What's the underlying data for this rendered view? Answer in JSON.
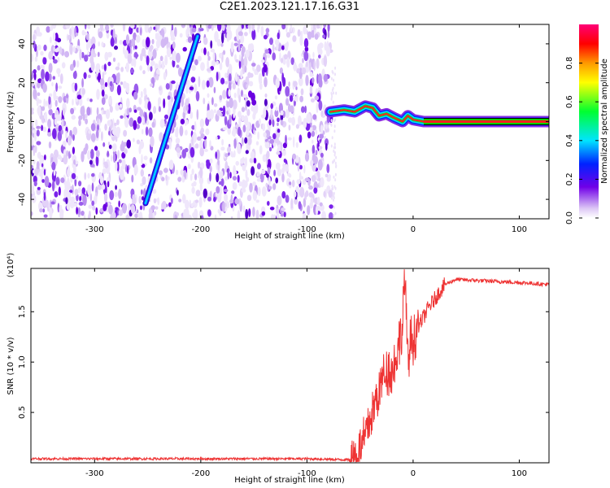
{
  "title": "C2E1.2023.121.17.16.G31",
  "colors": {
    "snr_line": "#ee3333",
    "axis": "#000000",
    "background": "#ffffff"
  },
  "chart_data": [
    {
      "type": "heatmap",
      "name": "spectrogram",
      "xlabel": "Height of straight line (km)",
      "ylabel": "Frequency (Hz)",
      "xlim": [
        -360,
        128
      ],
      "ylim": [
        -50,
        50
      ],
      "xticks": [
        -300,
        -200,
        -100,
        0,
        100
      ],
      "xtick_labels": [
        "-300",
        "-200",
        "-100",
        "0",
        "100"
      ],
      "yticks": [
        -40,
        -20,
        0,
        20,
        40
      ],
      "ytick_labels": [
        "-40",
        "-20",
        "0",
        "20",
        "40"
      ],
      "noise_region_x": [
        -360,
        -77
      ],
      "tracked_feature": {
        "description": "Diagonal line in the noise region",
        "start": {
          "x": -252,
          "y": -42
        },
        "end": {
          "x": -203,
          "y": 44
        }
      },
      "signal_band": [
        {
          "x": -78,
          "y": 5
        },
        {
          "x": -65,
          "y": 6
        },
        {
          "x": -55,
          "y": 5
        },
        {
          "x": -45,
          "y": 8
        },
        {
          "x": -38,
          "y": 7
        },
        {
          "x": -32,
          "y": 3
        },
        {
          "x": -25,
          "y": 4
        },
        {
          "x": -18,
          "y": 2
        },
        {
          "x": -10,
          "y": 0
        },
        {
          "x": -5,
          "y": 3
        },
        {
          "x": 0,
          "y": 1
        },
        {
          "x": 10,
          "y": 0
        },
        {
          "x": 128,
          "y": 0
        }
      ],
      "colorbar": {
        "label": "Normalized spectral amplitude",
        "range": [
          0,
          1
        ],
        "ticks": [
          0.0,
          0.2,
          0.4,
          0.6,
          0.8
        ],
        "tick_labels": [
          "0.0",
          "0.2",
          "0.4",
          "0.6",
          "0.8"
        ]
      }
    },
    {
      "type": "line",
      "name": "snr",
      "xlabel": "Height of straight line (km)",
      "ylabel": "SNR (10 * v/v)",
      "y_multiplier": "(x10⁴)",
      "xlim": [
        -360,
        128
      ],
      "ylim": [
        0,
        1.93
      ],
      "xticks": [
        -300,
        -200,
        -100,
        0,
        100
      ],
      "xtick_labels": [
        "-300",
        "-200",
        "-100",
        "0",
        "100"
      ],
      "yticks": [
        0.5,
        1.0,
        1.5
      ],
      "ytick_labels": [
        "0.5",
        "1.0",
        "1.5"
      ],
      "series": [
        {
          "name": "SNR",
          "x": [
            -360,
            -250,
            -150,
            -100,
            -60,
            -52,
            -45,
            -40,
            -35,
            -30,
            -25,
            -20,
            -15,
            -10,
            -8,
            -5,
            -2,
            0,
            5,
            10,
            15,
            20,
            25,
            30,
            40,
            60,
            80,
            100,
            128
          ],
          "y": [
            0.04,
            0.04,
            0.04,
            0.04,
            0.03,
            0.08,
            0.25,
            0.45,
            0.6,
            0.8,
            0.95,
            0.9,
            1.1,
            1.35,
            1.9,
            1.0,
            1.2,
            1.25,
            1.35,
            1.45,
            1.55,
            1.62,
            1.7,
            1.77,
            1.82,
            1.81,
            1.8,
            1.79,
            1.77
          ]
        }
      ]
    }
  ]
}
